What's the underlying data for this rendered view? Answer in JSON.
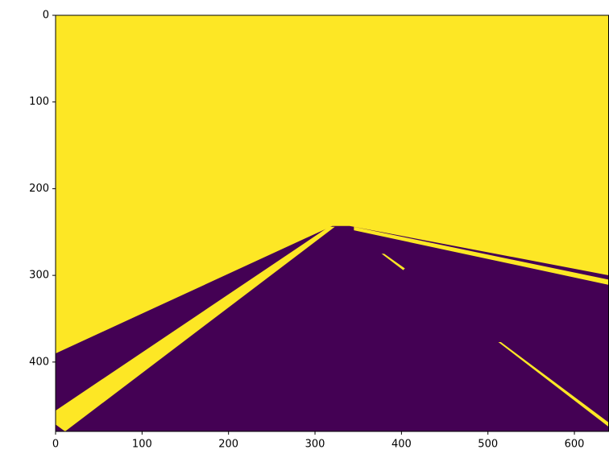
{
  "chart_data": {
    "type": "image",
    "background": "#fde725",
    "regions": [
      {
        "color": "#440154",
        "points": [
          [
            0,
            390
          ],
          [
            320,
            243
          ],
          [
            340,
            243
          ],
          [
            640,
            300
          ],
          [
            640,
            480
          ],
          [
            0,
            480
          ]
        ]
      },
      {
        "color": "#fde725",
        "points": [
          [
            0,
            456
          ],
          [
            316,
            244
          ],
          [
            323,
            244
          ],
          [
            11,
            480
          ],
          [
            0,
            472
          ]
        ]
      },
      {
        "color": "#fde725",
        "points": [
          [
            345,
            244
          ],
          [
            640,
            305
          ],
          [
            640,
            311
          ],
          [
            345,
            248
          ]
        ]
      },
      {
        "color": "#fde725",
        "points": [
          [
            377,
            275
          ],
          [
            380,
            275
          ],
          [
            404,
            292
          ],
          [
            402,
            294
          ]
        ]
      },
      {
        "color": "#fde725",
        "points": [
          [
            512,
            377
          ],
          [
            515,
            377
          ],
          [
            640,
            470
          ],
          [
            640,
            475
          ]
        ]
      }
    ],
    "xlim": [
      0,
      640
    ],
    "ylim": [
      480,
      0
    ],
    "xticks": [
      0,
      100,
      200,
      300,
      400,
      500,
      600
    ],
    "yticks": [
      0,
      100,
      200,
      300,
      400
    ]
  }
}
